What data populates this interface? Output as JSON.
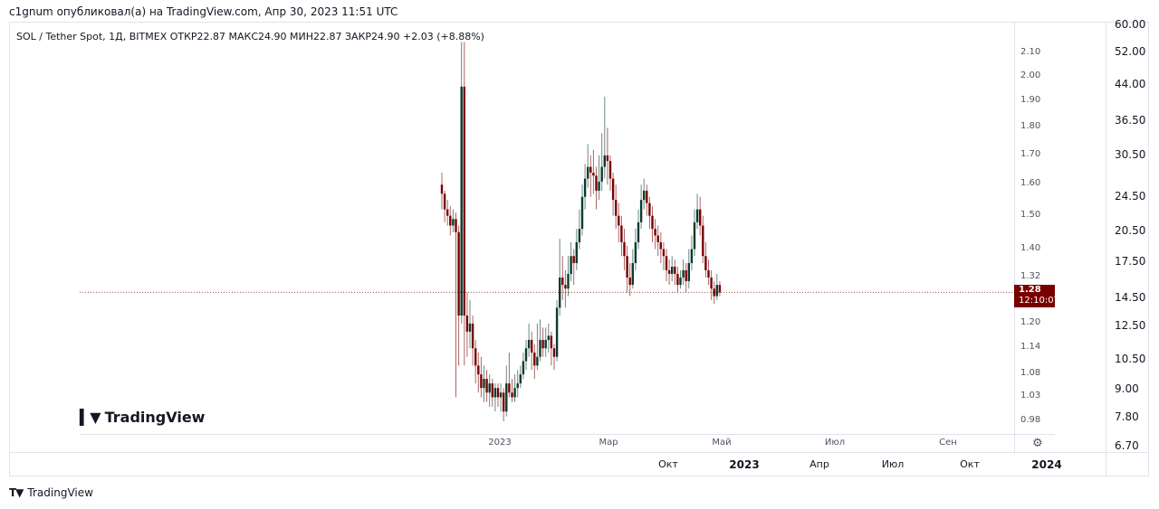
{
  "header": {
    "published": "c1gnum опубликовал(а) на TradingView.com, Апр 30, 2023 11:51 UTC"
  },
  "legend": {
    "text": "SOL / Tether Spot, 1Д, BITMEX  ОТКР22.87  МАКС24.90  МИН22.87  ЗАКР24.90  +2.03 (+8.88%)"
  },
  "last_price": {
    "value": "1.28",
    "countdown": "12:10:07",
    "color": "#7a0000"
  },
  "logo": {
    "text": "TradingView"
  },
  "footer": {
    "logo_text": "TradingView"
  },
  "icons": {
    "settings": "gear-icon"
  },
  "outer_scale": {
    "labels": [
      "60.00",
      "52.00",
      "44.00",
      "36.50",
      "30.50",
      "24.50",
      "20.50",
      "17.50",
      "14.50",
      "12.50",
      "10.50",
      "9.00",
      "7.80",
      "6.70"
    ],
    "log": true
  },
  "outer_time_axis": {
    "labels": [
      {
        "text": "Окт",
        "bold": false
      },
      {
        "text": "2023",
        "bold": true
      },
      {
        "text": "Апр",
        "bold": false
      },
      {
        "text": "Июл",
        "bold": false
      },
      {
        "text": "Окт",
        "bold": false
      },
      {
        "text": "2024",
        "bold": true
      }
    ]
  },
  "chart_data": {
    "type": "candlestick",
    "title": "SOL / Tether Spot, 1Д, BITMEX",
    "y_scale": "log",
    "ylim": [
      0.98,
      2.1
    ],
    "y_tick_labels": [
      "2.10",
      "2.00",
      "1.90",
      "1.80",
      "1.70",
      "1.60",
      "1.50",
      "1.40",
      "1.32",
      "1.20",
      "1.14",
      "1.08",
      "1.03",
      "0.98"
    ],
    "x_tick_labels": [
      "2023",
      "Мар",
      "Май",
      "Июл",
      "Сен"
    ],
    "up_color": "#0b3b2e",
    "down_color": "#7a0000",
    "last_value": 1.28,
    "grid": false,
    "candles_ohlc": [
      [
        1.6,
        1.64,
        1.52,
        1.57
      ],
      [
        1.57,
        1.58,
        1.48,
        1.52
      ],
      [
        1.52,
        1.55,
        1.47,
        1.5
      ],
      [
        1.5,
        1.53,
        1.44,
        1.47
      ],
      [
        1.47,
        1.52,
        1.45,
        1.49
      ],
      [
        1.49,
        1.51,
        1.03,
        1.45
      ],
      [
        1.45,
        1.47,
        1.1,
        1.22
      ],
      [
        1.22,
        2.15,
        1.2,
        1.96
      ],
      [
        1.96,
        2.15,
        1.1,
        1.22
      ],
      [
        1.22,
        1.28,
        1.12,
        1.18
      ],
      [
        1.18,
        1.26,
        1.14,
        1.2
      ],
      [
        1.2,
        1.22,
        1.1,
        1.14
      ],
      [
        1.14,
        1.16,
        1.06,
        1.1
      ],
      [
        1.1,
        1.13,
        1.04,
        1.08
      ],
      [
        1.08,
        1.12,
        1.03,
        1.05
      ],
      [
        1.05,
        1.1,
        1.02,
        1.07
      ],
      [
        1.07,
        1.09,
        1.02,
        1.04
      ],
      [
        1.04,
        1.08,
        1.01,
        1.06
      ],
      [
        1.06,
        1.07,
        1.01,
        1.03
      ],
      [
        1.03,
        1.06,
        1.0,
        1.05
      ],
      [
        1.05,
        1.06,
        1.01,
        1.03
      ],
      [
        1.03,
        1.06,
        1.0,
        1.04
      ],
      [
        1.04,
        1.05,
        0.98,
        1.0
      ],
      [
        1.0,
        1.1,
        0.99,
        1.06
      ],
      [
        1.06,
        1.13,
        1.03,
        1.04
      ],
      [
        1.04,
        1.07,
        1.02,
        1.03
      ],
      [
        1.03,
        1.08,
        1.02,
        1.05
      ],
      [
        1.05,
        1.09,
        1.03,
        1.06
      ],
      [
        1.06,
        1.1,
        1.05,
        1.08
      ],
      [
        1.08,
        1.13,
        1.07,
        1.11
      ],
      [
        1.11,
        1.16,
        1.09,
        1.14
      ],
      [
        1.14,
        1.2,
        1.12,
        1.16
      ],
      [
        1.16,
        1.18,
        1.09,
        1.13
      ],
      [
        1.13,
        1.15,
        1.07,
        1.1
      ],
      [
        1.1,
        1.2,
        1.09,
        1.12
      ],
      [
        1.12,
        1.21,
        1.11,
        1.16
      ],
      [
        1.16,
        1.19,
        1.12,
        1.14
      ],
      [
        1.14,
        1.19,
        1.12,
        1.16
      ],
      [
        1.16,
        1.2,
        1.13,
        1.17
      ],
      [
        1.17,
        1.18,
        1.1,
        1.14
      ],
      [
        1.14,
        1.15,
        1.09,
        1.12
      ],
      [
        1.12,
        1.26,
        1.11,
        1.24
      ],
      [
        1.24,
        1.43,
        1.22,
        1.32
      ],
      [
        1.32,
        1.38,
        1.26,
        1.3
      ],
      [
        1.3,
        1.34,
        1.24,
        1.29
      ],
      [
        1.29,
        1.38,
        1.27,
        1.33
      ],
      [
        1.33,
        1.42,
        1.31,
        1.38
      ],
      [
        1.38,
        1.4,
        1.3,
        1.36
      ],
      [
        1.36,
        1.46,
        1.34,
        1.42
      ],
      [
        1.42,
        1.52,
        1.4,
        1.46
      ],
      [
        1.46,
        1.6,
        1.44,
        1.56
      ],
      [
        1.56,
        1.67,
        1.52,
        1.62
      ],
      [
        1.62,
        1.74,
        1.59,
        1.66
      ],
      [
        1.66,
        1.7,
        1.56,
        1.64
      ],
      [
        1.64,
        1.72,
        1.57,
        1.63
      ],
      [
        1.63,
        1.66,
        1.52,
        1.58
      ],
      [
        1.58,
        1.7,
        1.55,
        1.61
      ],
      [
        1.61,
        1.78,
        1.58,
        1.66
      ],
      [
        1.66,
        1.92,
        1.62,
        1.7
      ],
      [
        1.7,
        1.8,
        1.6,
        1.68
      ],
      [
        1.68,
        1.7,
        1.58,
        1.62
      ],
      [
        1.62,
        1.64,
        1.5,
        1.55
      ],
      [
        1.55,
        1.6,
        1.46,
        1.5
      ],
      [
        1.5,
        1.54,
        1.42,
        1.47
      ],
      [
        1.47,
        1.5,
        1.38,
        1.42
      ],
      [
        1.42,
        1.46,
        1.34,
        1.38
      ],
      [
        1.38,
        1.41,
        1.28,
        1.32
      ],
      [
        1.32,
        1.36,
        1.27,
        1.3
      ],
      [
        1.3,
        1.4,
        1.29,
        1.36
      ],
      [
        1.36,
        1.46,
        1.34,
        1.42
      ],
      [
        1.42,
        1.52,
        1.4,
        1.48
      ],
      [
        1.48,
        1.6,
        1.46,
        1.55
      ],
      [
        1.55,
        1.62,
        1.52,
        1.58
      ],
      [
        1.58,
        1.6,
        1.5,
        1.54
      ],
      [
        1.54,
        1.56,
        1.46,
        1.5
      ],
      [
        1.5,
        1.53,
        1.42,
        1.46
      ],
      [
        1.46,
        1.49,
        1.4,
        1.44
      ],
      [
        1.44,
        1.47,
        1.38,
        1.42
      ],
      [
        1.42,
        1.45,
        1.36,
        1.4
      ],
      [
        1.4,
        1.42,
        1.34,
        1.38
      ],
      [
        1.38,
        1.4,
        1.31,
        1.34
      ],
      [
        1.34,
        1.37,
        1.3,
        1.33
      ],
      [
        1.33,
        1.38,
        1.31,
        1.35
      ],
      [
        1.35,
        1.37,
        1.3,
        1.33
      ],
      [
        1.33,
        1.35,
        1.28,
        1.3
      ],
      [
        1.3,
        1.34,
        1.29,
        1.32
      ],
      [
        1.32,
        1.37,
        1.3,
        1.34
      ],
      [
        1.34,
        1.36,
        1.28,
        1.31
      ],
      [
        1.31,
        1.4,
        1.29,
        1.36
      ],
      [
        1.36,
        1.44,
        1.34,
        1.4
      ],
      [
        1.4,
        1.52,
        1.38,
        1.48
      ],
      [
        1.48,
        1.57,
        1.46,
        1.52
      ],
      [
        1.52,
        1.56,
        1.44,
        1.47
      ],
      [
        1.47,
        1.5,
        1.36,
        1.38
      ],
      [
        1.38,
        1.42,
        1.32,
        1.34
      ],
      [
        1.34,
        1.37,
        1.3,
        1.32
      ],
      [
        1.32,
        1.34,
        1.26,
        1.29
      ],
      [
        1.29,
        1.31,
        1.25,
        1.27
      ],
      [
        1.27,
        1.33,
        1.26,
        1.3
      ],
      [
        1.3,
        1.31,
        1.27,
        1.28
      ]
    ]
  }
}
